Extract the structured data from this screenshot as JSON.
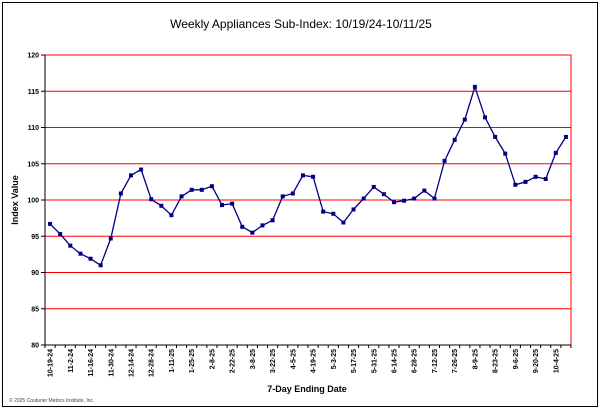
{
  "chart_data": {
    "type": "line",
    "title": "Weekly Appliances Sub-Index: 10/19/24-10/11/25",
    "xlabel": "7-Day Ending Date",
    "ylabel": "Index Value",
    "ylim": [
      80,
      120
    ],
    "yticks": [
      80,
      85,
      90,
      95,
      100,
      105,
      110,
      115,
      120
    ],
    "grid": true,
    "x": [
      "10-19-24",
      "10-26-24",
      "11-2-24",
      "11-9-24",
      "11-16-24",
      "11-23-24",
      "11-30-24",
      "12-7-24",
      "12-14-24",
      "12-21-24",
      "12-28-24",
      "1-4-25",
      "1-11-25",
      "1-18-25",
      "1-25-25",
      "2-1-25",
      "2-8-25",
      "2-15-25",
      "2-22-25",
      "3-1-25",
      "3-8-25",
      "3-15-25",
      "3-22-25",
      "3-29-25",
      "4-5-25",
      "4-12-25",
      "4-19-25",
      "4-26-25",
      "5-3-25",
      "5-10-25",
      "5-17-25",
      "5-24-25",
      "5-31-25",
      "6-7-25",
      "6-14-25",
      "6-21-25",
      "6-28-25",
      "7-5-25",
      "7-12-25",
      "7-19-25",
      "7-26-25",
      "8-2-25",
      "8-9-25",
      "8-16-25",
      "8-23-25",
      "8-30-25",
      "9-6-25",
      "9-13-25",
      "9-20-25",
      "9-27-25",
      "10-4-25",
      "10-11-25"
    ],
    "tick_labels": [
      "10-19-24",
      "11-2-24",
      "11-16-24",
      "11-30-24",
      "12-14-24",
      "12-28-24",
      "1-11-25",
      "1-25-25",
      "2-8-25",
      "2-22-25",
      "3-8-25",
      "3-22-25",
      "4-5-25",
      "4-19-25",
      "5-3-25",
      "5-17-25",
      "5-31-25",
      "6-14-25",
      "6-28-25",
      "7-12-25",
      "7-26-25",
      "8-9-25",
      "8-23-25",
      "9-6-25",
      "9-20-25",
      "10-4-25"
    ],
    "series": [
      {
        "values": [
          96.7,
          95.3,
          93.7,
          92.6,
          91.9,
          91.0,
          94.7,
          100.9,
          103.4,
          104.2,
          100.1,
          99.2,
          97.9,
          100.5,
          101.4,
          101.4,
          101.9,
          99.3,
          99.5,
          96.3,
          95.5,
          96.5,
          97.2,
          100.5,
          100.9,
          103.4,
          103.2,
          98.4,
          98.1,
          96.9,
          98.7,
          100.2,
          101.8,
          100.8,
          99.7,
          99.9,
          100.2,
          101.3,
          100.2,
          105.4,
          108.3,
          111.1,
          115.6,
          111.4,
          108.7,
          106.4,
          102.1,
          102.5,
          103.2,
          102.9,
          106.5,
          108.7
        ]
      }
    ],
    "copyright": "© 2025 Couturier Metrics Institute, Inc."
  }
}
